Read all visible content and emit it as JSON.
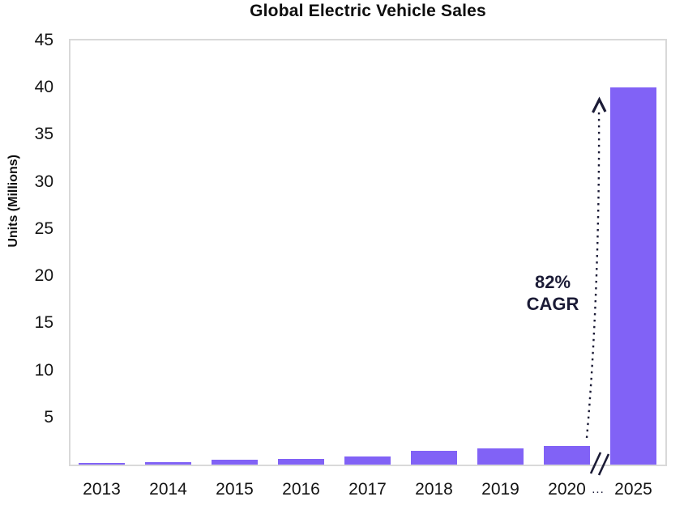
{
  "chart_data": {
    "type": "bar",
    "title": "Global Electric Vehicle Sales",
    "xlabel": "",
    "ylabel": "Units (Millions)",
    "categories": [
      "2013",
      "2014",
      "2015",
      "2016",
      "2017",
      "2018",
      "2019",
      "2020",
      "2025"
    ],
    "values": [
      0.2,
      0.3,
      0.5,
      0.6,
      0.9,
      1.5,
      1.7,
      2.0,
      40
    ],
    "ylim": [
      0,
      45
    ],
    "yticks": [
      5,
      10,
      15,
      20,
      25,
      30,
      35,
      40,
      45
    ],
    "grid": false,
    "legend": "none",
    "axis_break": {
      "between": [
        "2020",
        "2025"
      ],
      "label": "..."
    },
    "annotation": {
      "line1": "82%",
      "line2": "CAGR"
    }
  },
  "colors": {
    "bar": "#8162F6",
    "annotation": "#1b1b36",
    "frame": "#d9d9d9",
    "text": "#111111"
  }
}
